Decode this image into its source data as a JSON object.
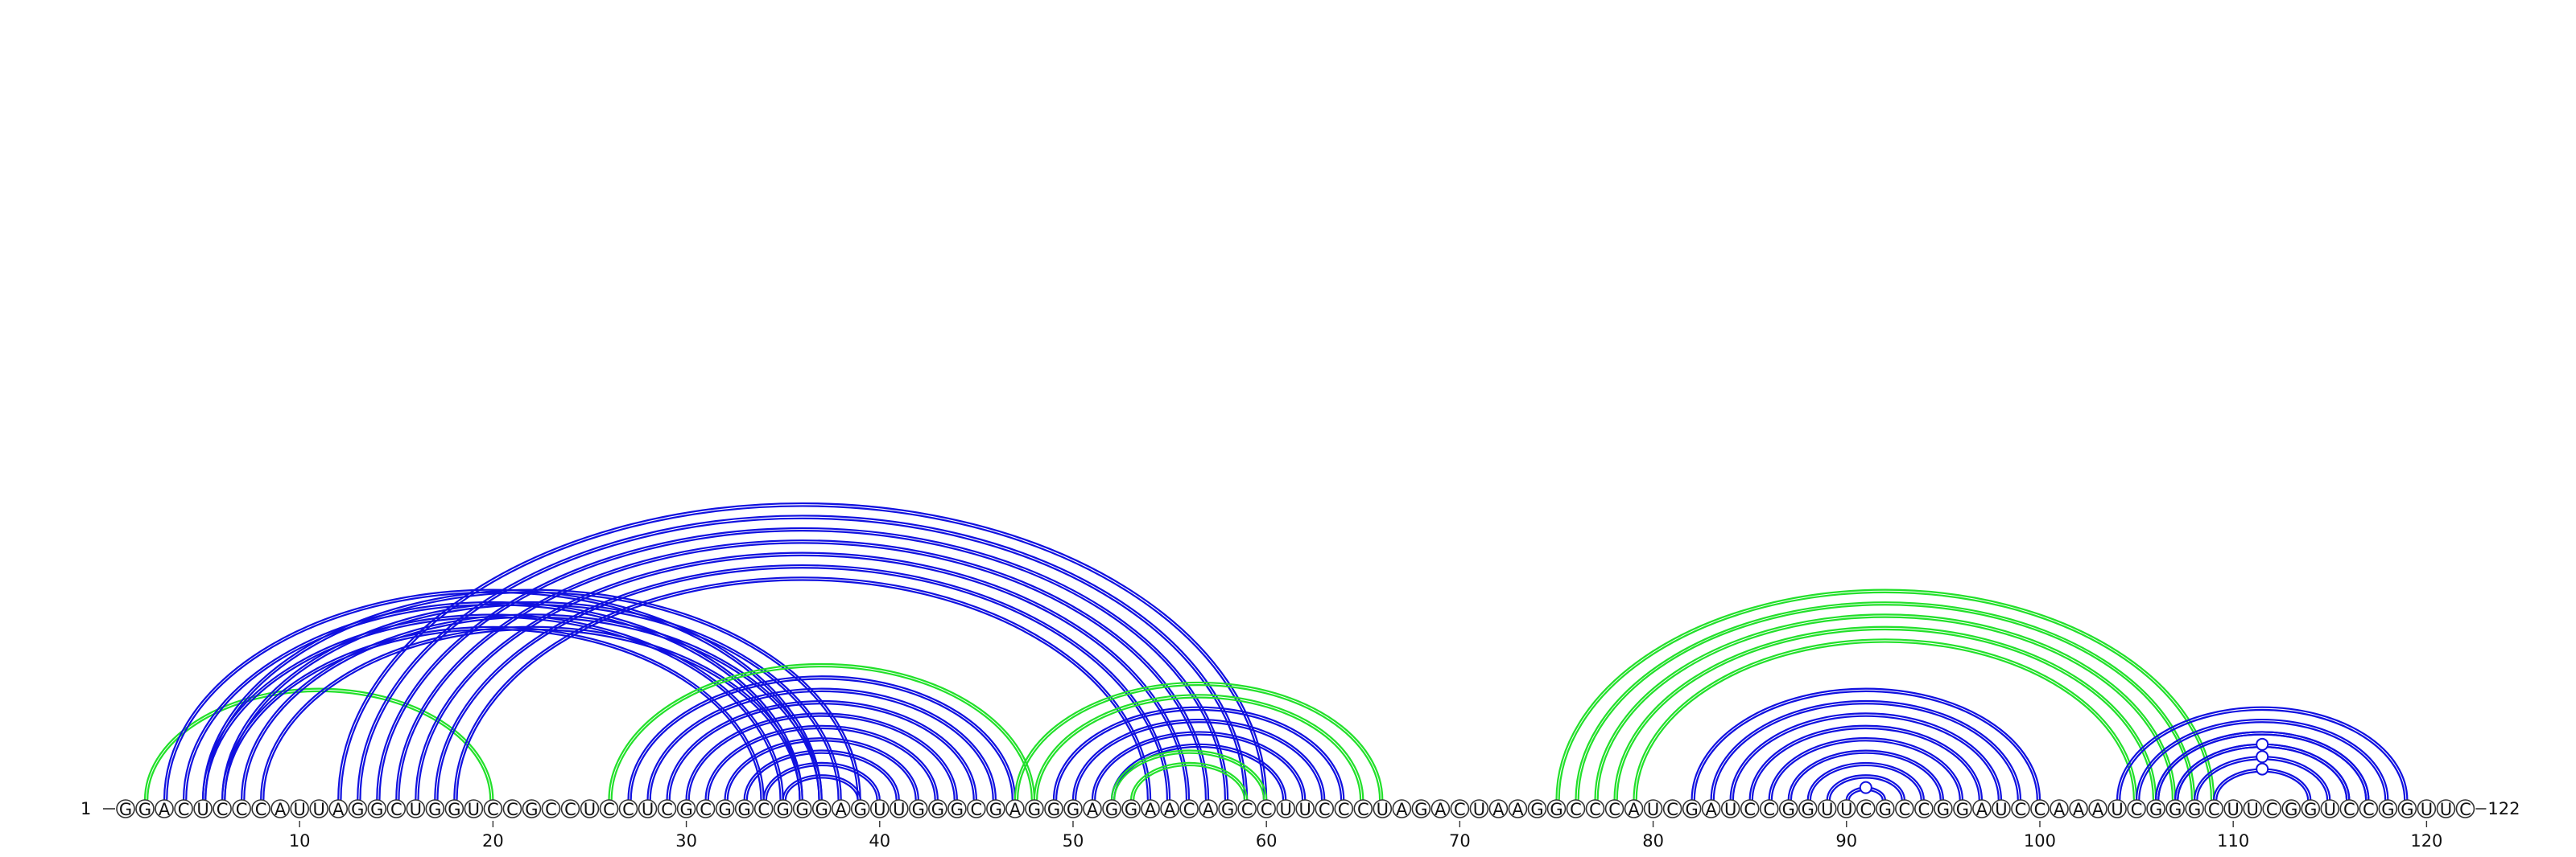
{
  "sequence": "GGACUCCCAUUAGGCUGGUCCGCCUCCUCGCGGCGGGAGUUGGGCGAGGGAGGAACAGCCUUCCCUAGACUAAGGCCCAUCGAUCCGGUUCGCCGGAUCCAAAUCGGGCUUCGGUCCGGUUC",
  "start_label": "1",
  "end_label": "122",
  "ticks": [
    "10",
    "20",
    "30",
    "40",
    "50",
    "60",
    "70",
    "80",
    "90",
    "100",
    "110",
    "120"
  ],
  "colors": {
    "blue": "#1010e0",
    "green": "#22e02a",
    "outline": "#333333"
  },
  "helices": [
    {
      "color": "green",
      "count": 1,
      "i": 2,
      "j": 20
    },
    {
      "color": "blue",
      "count": 4,
      "i": 3,
      "j": 37
    },
    {
      "color": "blue",
      "count": 4,
      "i": 5,
      "j": 39
    },
    {
      "color": "blue",
      "count": 7,
      "i": 12,
      "j": 60
    },
    {
      "color": "green",
      "count": 1,
      "i": 26,
      "j": 48
    },
    {
      "color": "blue",
      "count": 9,
      "i": 27,
      "j": 47
    },
    {
      "color": "green",
      "count": 1,
      "i": 47,
      "j": 66
    },
    {
      "color": "green",
      "count": 1,
      "i": 48,
      "j": 65
    },
    {
      "color": "blue",
      "count": 4,
      "i": 49,
      "j": 64
    },
    {
      "color": "green",
      "count": 2,
      "i": 52,
      "j": 60
    },
    {
      "color": "green",
      "count": 5,
      "i": 75,
      "j": 109
    },
    {
      "color": "blue",
      "count": 9,
      "i": 82,
      "j": 100
    },
    {
      "color": "blue",
      "count": 4,
      "i": 104,
      "j": 119
    },
    {
      "color": "blue",
      "count": 3,
      "i": 106,
      "j": 117
    },
    {
      "color": "blue",
      "count": 1,
      "i": 109,
      "j": 114
    }
  ],
  "markers": [
    {
      "color": "blue",
      "at": 91.0
    },
    {
      "color": "blue",
      "at": 111.5
    }
  ]
}
